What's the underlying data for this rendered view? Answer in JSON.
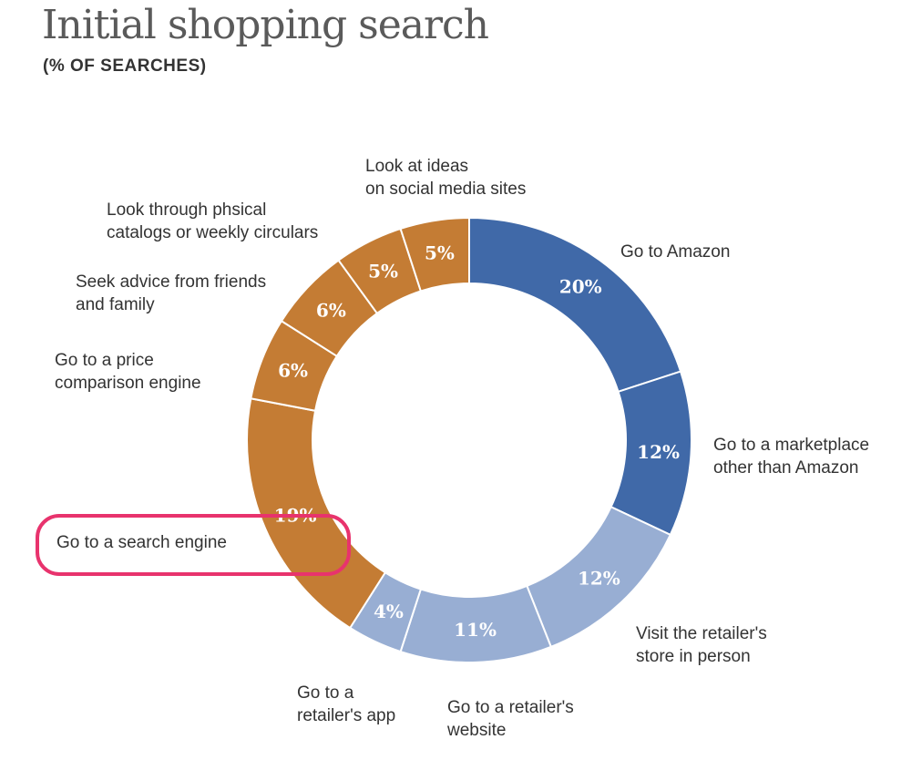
{
  "header": {
    "title": "Initial shopping search",
    "subtitle": "(% OF SEARCHES)"
  },
  "chart_data": {
    "type": "pie",
    "style": "donut",
    "title": "Initial shopping search",
    "subtitle": "(% OF SEARCHES)",
    "unit": "%",
    "slices": [
      {
        "label": "Go to Amazon",
        "value": 20,
        "value_label": "20%",
        "color": "#4069a8"
      },
      {
        "label": "Go to a marketplace other than Amazon",
        "label_lines": [
          "Go to a marketplace",
          "other than Amazon"
        ],
        "value": 12,
        "value_label": "12%",
        "color": "#4069a8"
      },
      {
        "label": "Visit the retailer's store in person",
        "label_lines": [
          "Visit the retailer's",
          "store in person"
        ],
        "value": 12,
        "value_label": "12%",
        "color": "#98aed3"
      },
      {
        "label": "Go to a retailer's website",
        "label_lines": [
          "Go to a retailer's",
          "website"
        ],
        "value": 11,
        "value_label": "11%",
        "color": "#98aed3"
      },
      {
        "label": "Go to a retailer's app",
        "label_lines": [
          "Go to a",
          "retailer's app"
        ],
        "value": 4,
        "value_label": "4%",
        "color": "#98aed3"
      },
      {
        "label": "Go to a search engine",
        "value": 19,
        "value_label": "19%",
        "color": "#c47c34",
        "highlighted": true
      },
      {
        "label": "Go to a price comparison engine",
        "label_lines": [
          "Go to a price",
          "comparison engine"
        ],
        "value": 6,
        "value_label": "6%",
        "color": "#c47c34"
      },
      {
        "label": "Seek advice from friends and family",
        "label_lines": [
          "Seek advice from friends",
          "and family"
        ],
        "value": 6,
        "value_label": "6%",
        "color": "#c47c34"
      },
      {
        "label": "Look through phsical catalogs or weekly circulars",
        "label_lines": [
          "Look through phsical",
          "catalogs or weekly circulars"
        ],
        "value": 5,
        "value_label": "5%",
        "color": "#c47c34"
      },
      {
        "label": "Look at ideas on social media sites",
        "label_lines": [
          "Look at ideas",
          "on social media sites"
        ],
        "value": 5,
        "value_label": "5%",
        "color": "#c47c34"
      }
    ],
    "highlight_color": "#e8336d",
    "legend": "none"
  }
}
